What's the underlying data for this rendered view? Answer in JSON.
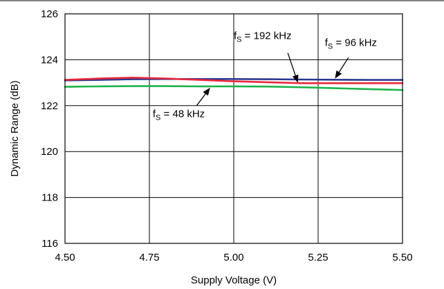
{
  "chart_data": {
    "type": "line",
    "title": "",
    "xlabel": "Supply Voltage (V)",
    "ylabel": "Dynamic Range (dB)",
    "xlim": [
      4.5,
      5.5
    ],
    "ylim": [
      116,
      126
    ],
    "xticks": [
      4.5,
      4.75,
      5.0,
      5.25,
      5.5
    ],
    "xtick_labels": [
      "4.50",
      "4.75",
      "5.00",
      "5.25",
      "5.50"
    ],
    "yticks": [
      116,
      118,
      120,
      122,
      124,
      126
    ],
    "ytick_labels": [
      "116",
      "118",
      "120",
      "122",
      "124",
      "126"
    ],
    "grid": true,
    "legend": "none",
    "series": [
      {
        "name": "fS = 96 kHz",
        "label_main": "f",
        "label_sub": "S",
        "label_rest": " = 96 kHz",
        "color": "#2b3990",
        "x": [
          4.5,
          4.6,
          4.7,
          4.8,
          4.9,
          5.0,
          5.1,
          5.2,
          5.3,
          5.4,
          5.5
        ],
        "y": [
          123.1,
          123.12,
          123.15,
          123.16,
          123.16,
          123.16,
          123.15,
          123.14,
          123.13,
          123.12,
          123.12
        ]
      },
      {
        "name": "fS = 192 kHz",
        "label_main": "f",
        "label_sub": "S",
        "label_rest": " = 192 kHz",
        "color": "#e8283c",
        "x": [
          4.5,
          4.6,
          4.7,
          4.8,
          4.9,
          5.0,
          5.1,
          5.2,
          5.3,
          5.4,
          5.5
        ],
        "y": [
          123.12,
          123.18,
          123.22,
          123.18,
          123.12,
          123.06,
          123.02,
          122.98,
          122.98,
          122.98,
          122.98
        ]
      },
      {
        "name": "fS = 48 kHz",
        "label_main": "f",
        "label_sub": "S",
        "label_rest": " = 48 kHz",
        "color": "#1db34a",
        "x": [
          4.5,
          4.6,
          4.7,
          4.8,
          4.9,
          5.0,
          5.1,
          5.2,
          5.3,
          5.4,
          5.5
        ],
        "y": [
          122.82,
          122.84,
          122.85,
          122.85,
          122.84,
          122.84,
          122.83,
          122.8,
          122.76,
          122.72,
          122.68
        ]
      }
    ],
    "annotations": [
      {
        "series": 1,
        "text_x": 5.0,
        "text_y": 124.9,
        "arrow_from": [
          5.16,
          124.3
        ],
        "arrow_to": [
          5.19,
          123.0
        ]
      },
      {
        "series": 0,
        "text_x": 5.27,
        "text_y": 124.6,
        "arrow_from": [
          5.34,
          124.1
        ],
        "arrow_to": [
          5.3,
          123.18
        ]
      },
      {
        "series": 2,
        "text_x": 4.76,
        "text_y": 121.5,
        "arrow_from": [
          4.89,
          122.0
        ],
        "arrow_to": [
          4.93,
          122.78
        ]
      }
    ]
  }
}
